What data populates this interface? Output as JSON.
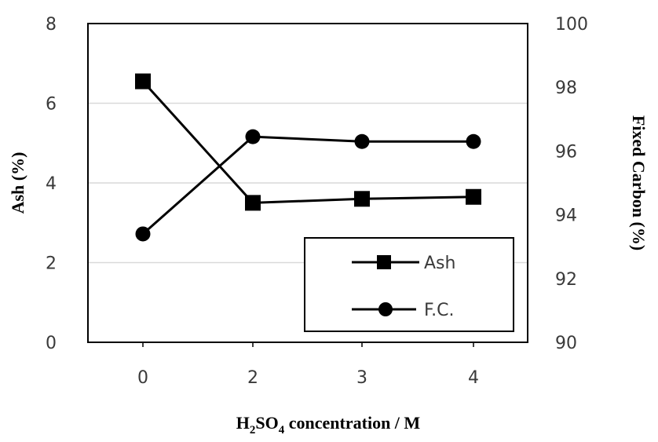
{
  "chart_data": {
    "type": "line",
    "categories": [
      "0",
      "2",
      "3",
      "4"
    ],
    "x_label_main": "H",
    "x_label_sub1": "2",
    "x_label_mid": "SO",
    "x_label_sub2": "4",
    "x_label_end": " concentration / M",
    "ylabel_left": "Ash (%)",
    "ylabel_right": "Fixed Carbon (%)",
    "ylim_left": [
      0,
      8
    ],
    "ylim_right": [
      90,
      100
    ],
    "yticks_left": [
      0,
      2,
      4,
      6,
      8
    ],
    "yticks_right": [
      90,
      92,
      94,
      96,
      98,
      100
    ],
    "grid": "horizontal",
    "legend_position": "bottom-right",
    "series": [
      {
        "name": "Ash",
        "axis": "left",
        "marker": "square",
        "values": [
          6.55,
          3.5,
          3.6,
          3.65
        ]
      },
      {
        "name": "F.C.",
        "axis": "right",
        "marker": "circle",
        "values": [
          93.4,
          96.45,
          96.3,
          96.3
        ]
      }
    ]
  }
}
